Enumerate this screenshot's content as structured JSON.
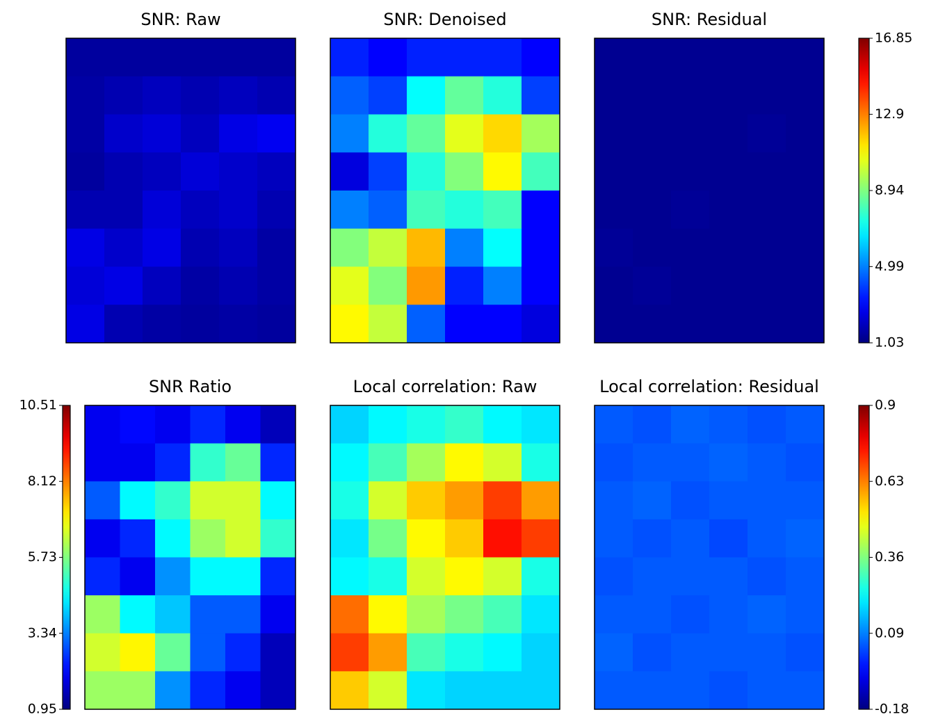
{
  "chart_data": [
    {
      "type": "heatmap",
      "title": "SNR: Raw",
      "colormap": "jet",
      "zlim": [
        1.03,
        16.85
      ],
      "values": [
        [
          1.5,
          1.5,
          1.5,
          1.5,
          1.5,
          1.5
        ],
        [
          1.6,
          1.8,
          2.0,
          1.8,
          2.0,
          1.8
        ],
        [
          1.6,
          2.2,
          2.4,
          2.0,
          2.6,
          2.8
        ],
        [
          1.5,
          1.8,
          2.0,
          2.4,
          2.2,
          2.0
        ],
        [
          1.8,
          1.8,
          2.4,
          2.0,
          2.2,
          1.8
        ],
        [
          2.6,
          2.2,
          2.6,
          1.8,
          2.0,
          1.6
        ],
        [
          2.4,
          2.6,
          2.0,
          1.6,
          1.8,
          1.6
        ],
        [
          2.6,
          1.8,
          1.6,
          1.5,
          1.6,
          1.5
        ]
      ]
    },
    {
      "type": "heatmap",
      "title": "SNR: Denoised",
      "colormap": "jet",
      "zlim": [
        1.03,
        16.85
      ],
      "values": [
        [
          3.5,
          3.0,
          3.5,
          3.5,
          3.5,
          3.0
        ],
        [
          4.5,
          4.0,
          7.0,
          8.5,
          7.5,
          4.0
        ],
        [
          5.0,
          7.5,
          8.5,
          10.5,
          11.5,
          9.5
        ],
        [
          2.5,
          4.0,
          7.5,
          9.0,
          11.0,
          8.0
        ],
        [
          5.0,
          4.5,
          8.0,
          7.5,
          8.0,
          3.0
        ],
        [
          9.0,
          10.0,
          12.0,
          5.0,
          7.0,
          3.0
        ],
        [
          10.5,
          9.0,
          12.5,
          3.5,
          5.0,
          3.0
        ],
        [
          11.0,
          10.0,
          4.5,
          3.0,
          3.0,
          2.5
        ]
      ]
    },
    {
      "type": "heatmap",
      "title": "SNR: Residual",
      "colormap": "jet",
      "zlim": [
        1.03,
        16.85
      ],
      "values": [
        [
          1.3,
          1.3,
          1.3,
          1.3,
          1.3,
          1.3
        ],
        [
          1.3,
          1.3,
          1.3,
          1.3,
          1.3,
          1.3
        ],
        [
          1.3,
          1.3,
          1.3,
          1.3,
          1.4,
          1.3
        ],
        [
          1.3,
          1.3,
          1.3,
          1.3,
          1.3,
          1.3
        ],
        [
          1.3,
          1.3,
          1.4,
          1.3,
          1.3,
          1.3
        ],
        [
          1.4,
          1.3,
          1.3,
          1.3,
          1.3,
          1.3
        ],
        [
          1.3,
          1.4,
          1.3,
          1.3,
          1.3,
          1.3
        ],
        [
          1.3,
          1.3,
          1.3,
          1.3,
          1.3,
          1.3
        ]
      ],
      "colorbar": "right",
      "zticks": [
        1.03,
        4.99,
        8.94,
        12.9,
        16.85
      ]
    },
    {
      "type": "heatmap",
      "title": "SNR Ratio",
      "colormap": "jet",
      "zlim": [
        0.95,
        10.51
      ],
      "values": [
        [
          2.0,
          2.2,
          2.0,
          2.5,
          2.0,
          1.5
        ],
        [
          2.0,
          2.0,
          2.5,
          5.0,
          5.5,
          2.5
        ],
        [
          3.0,
          4.5,
          5.0,
          6.5,
          6.5,
          4.5
        ],
        [
          2.0,
          2.5,
          4.5,
          6.0,
          6.5,
          5.0
        ],
        [
          2.5,
          2.0,
          3.5,
          4.5,
          4.5,
          2.5
        ],
        [
          6.0,
          4.5,
          4.0,
          3.0,
          3.0,
          2.0
        ],
        [
          6.5,
          7.0,
          5.5,
          3.0,
          2.5,
          1.5
        ],
        [
          6.0,
          6.0,
          3.5,
          2.5,
          2.0,
          1.5
        ]
      ],
      "colorbar": "left",
      "zticks": [
        0.95,
        3.34,
        5.73,
        8.12,
        10.51
      ]
    },
    {
      "type": "heatmap",
      "title": "Local correlation: Raw",
      "colormap": "jet",
      "zlim": [
        -0.18,
        0.9
      ],
      "values": [
        [
          0.18,
          0.22,
          0.25,
          0.28,
          0.22,
          0.2
        ],
        [
          0.22,
          0.3,
          0.4,
          0.5,
          0.45,
          0.25
        ],
        [
          0.25,
          0.45,
          0.55,
          0.6,
          0.7,
          0.6
        ],
        [
          0.2,
          0.35,
          0.5,
          0.55,
          0.75,
          0.7
        ],
        [
          0.22,
          0.25,
          0.45,
          0.5,
          0.45,
          0.25
        ],
        [
          0.65,
          0.5,
          0.4,
          0.35,
          0.3,
          0.2
        ],
        [
          0.7,
          0.6,
          0.3,
          0.25,
          0.22,
          0.18
        ],
        [
          0.55,
          0.45,
          0.2,
          0.18,
          0.18,
          0.18
        ]
      ]
    },
    {
      "type": "heatmap",
      "title": "Local correlation: Residual",
      "colormap": "jet",
      "zlim": [
        -0.18,
        0.9
      ],
      "values": [
        [
          0.05,
          0.04,
          0.06,
          0.05,
          0.04,
          0.05
        ],
        [
          0.04,
          0.05,
          0.05,
          0.06,
          0.05,
          0.04
        ],
        [
          0.05,
          0.06,
          0.04,
          0.05,
          0.05,
          0.05
        ],
        [
          0.05,
          0.04,
          0.05,
          0.03,
          0.05,
          0.06
        ],
        [
          0.04,
          0.05,
          0.05,
          0.05,
          0.04,
          0.05
        ],
        [
          0.05,
          0.05,
          0.04,
          0.05,
          0.06,
          0.05
        ],
        [
          0.06,
          0.04,
          0.05,
          0.05,
          0.05,
          0.04
        ],
        [
          0.05,
          0.05,
          0.05,
          0.04,
          0.05,
          0.05
        ]
      ],
      "colorbar": "right",
      "zticks": [
        -0.18,
        0.09,
        0.36,
        0.63,
        0.9
      ]
    }
  ]
}
